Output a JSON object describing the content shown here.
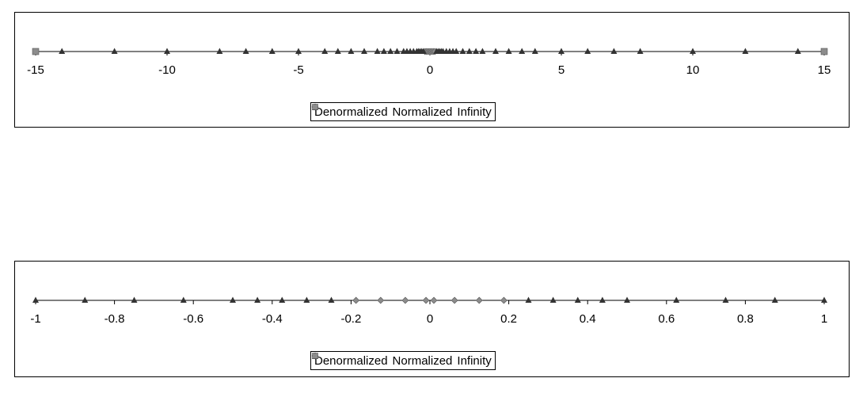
{
  "marker_colors": {
    "Denormalized": "#8c8c8c",
    "Normalized": "#333333",
    "Infinity": "#8c8c8c"
  },
  "chart_data": [
    {
      "type": "scatter",
      "xlim": [
        -15,
        15
      ],
      "xticks": [
        -15,
        -10,
        -5,
        0,
        5,
        10,
        15
      ],
      "tick_labels": [
        "-15",
        "-10",
        "-5",
        "0",
        "5",
        "10",
        "15"
      ],
      "legend": [
        "Denormalized",
        "Normalized",
        "Infinity"
      ],
      "legend_position": "bottom",
      "series": [
        {
          "name": "Denormalized",
          "marker": "diamond",
          "x": [
            -0.1875,
            -0.125,
            -0.0625,
            0,
            0.0625,
            0.125,
            0.1875
          ]
        },
        {
          "name": "Normalized",
          "marker": "triangle",
          "x": [
            -14,
            -12,
            -10,
            -8,
            -7,
            -6,
            -5,
            -4,
            -3.5,
            -3,
            -2.5,
            -2,
            -1.75,
            -1.5,
            -1.25,
            -1,
            -0.875,
            -0.75,
            -0.625,
            -0.5,
            -0.4375,
            -0.375,
            -0.3125,
            -0.25,
            0.25,
            0.3125,
            0.375,
            0.4375,
            0.5,
            0.625,
            0.75,
            0.875,
            1,
            1.25,
            1.5,
            1.75,
            2,
            2.5,
            3,
            3.5,
            4,
            5,
            6,
            7,
            8,
            10,
            12,
            14
          ]
        },
        {
          "name": "Infinity",
          "marker": "square",
          "x": [
            -15,
            15
          ]
        }
      ]
    },
    {
      "type": "scatter",
      "xlim": [
        -1,
        1
      ],
      "xticks": [
        -1,
        -0.8,
        -0.6,
        -0.4,
        -0.2,
        0,
        0.2,
        0.4,
        0.6,
        0.8,
        1
      ],
      "tick_labels": [
        "-1",
        "-0.8",
        "-0.6",
        "-0.4",
        "-0.2",
        "0",
        "0.2",
        "0.4",
        "0.6",
        "0.8",
        "1"
      ],
      "legend": [
        "Denormalized",
        "Normalized",
        "Infinity"
      ],
      "legend_position": "bottom",
      "series": [
        {
          "name": "Denormalized",
          "marker": "diamond",
          "x": [
            -0.1875,
            -0.125,
            -0.0625,
            -0.01,
            0.01,
            0.0625,
            0.125,
            0.1875
          ]
        },
        {
          "name": "Normalized",
          "marker": "triangle",
          "x": [
            -1,
            -0.875,
            -0.75,
            -0.625,
            -0.5,
            -0.4375,
            -0.375,
            -0.3125,
            -0.25,
            0.25,
            0.3125,
            0.375,
            0.4375,
            0.5,
            0.625,
            0.75,
            0.875,
            1
          ]
        },
        {
          "name": "Infinity",
          "marker": "square",
          "x": []
        }
      ]
    }
  ]
}
